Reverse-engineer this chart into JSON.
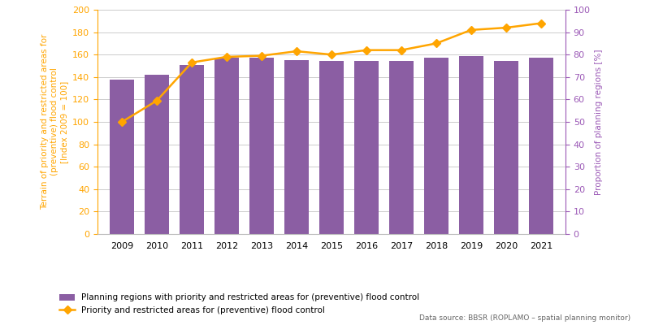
{
  "years": [
    2009,
    2010,
    2011,
    2012,
    2013,
    2014,
    2015,
    2016,
    2017,
    2018,
    2019,
    2020,
    2021
  ],
  "bar_values": [
    138,
    142,
    151,
    157,
    157,
    155,
    154,
    154,
    154,
    157,
    159,
    154,
    157
  ],
  "line_values": [
    100,
    119,
    153,
    158,
    159,
    163,
    160,
    164,
    164,
    170,
    182,
    184,
    188
  ],
  "bar_color": "#8B5EA3",
  "line_color": "#FFA500",
  "line_marker": "D",
  "left_ylabel": "Terrain of priority and restricted areas for\n(preventive) flood control\n[Index 2009 = 100]",
  "right_ylabel": "Proportion of planning regions [%]",
  "left_ylim": [
    0,
    200
  ],
  "right_ylim": [
    0,
    100
  ],
  "left_yticks": [
    0,
    20,
    40,
    60,
    80,
    100,
    120,
    140,
    160,
    180,
    200
  ],
  "right_yticks": [
    0,
    10,
    20,
    30,
    40,
    50,
    60,
    70,
    80,
    90,
    100
  ],
  "left_ylabel_color": "#FFA500",
  "right_ylabel_color": "#9B59B6",
  "legend_bar_label": "Planning regions with priority and restricted areas for (preventive) flood control",
  "legend_line_label": "Priority and restricted areas for (preventive) flood control",
  "data_source": "Data source: BBSR (ROPLAMO – spatial planning monitor)",
  "grid_color": "#cccccc",
  "background_color": "#ffffff",
  "fig_width": 8.0,
  "fig_height": 4.0
}
